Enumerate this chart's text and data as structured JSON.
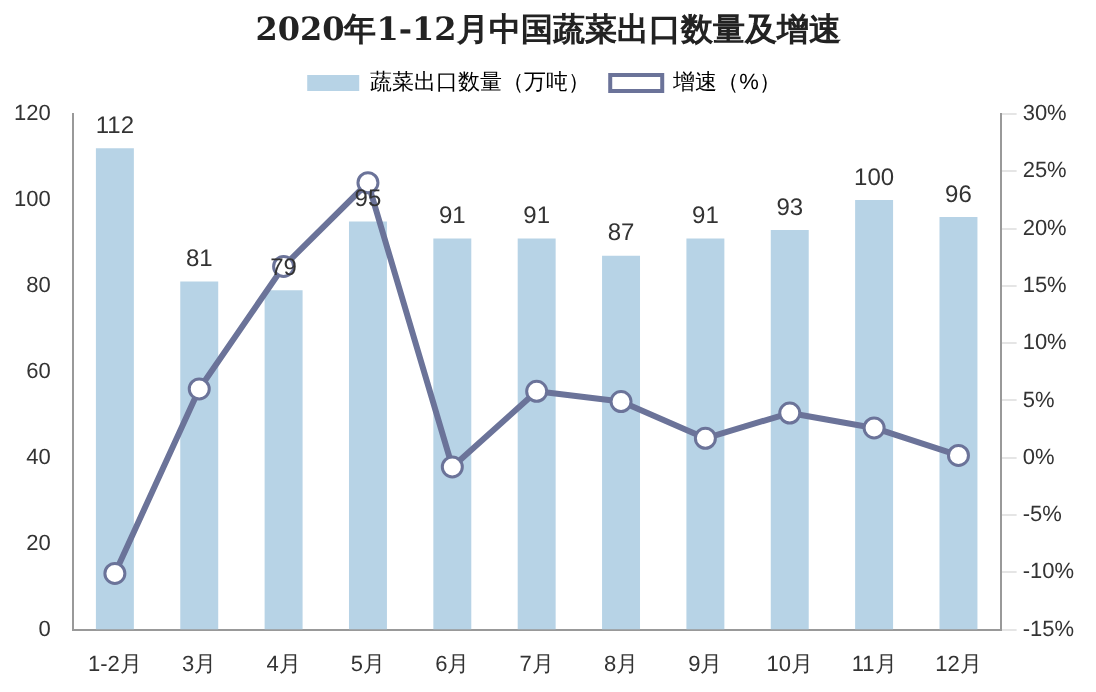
{
  "chart_data": {
    "type": "bar",
    "title": "2020年1-12月中国蔬菜出口数量及增速",
    "categories": [
      "1-2月",
      "3月",
      "4月",
      "5月",
      "6月",
      "7月",
      "8月",
      "9月",
      "10月",
      "11月",
      "12月"
    ],
    "series": [
      {
        "name": "蔬菜出口数量（万吨）",
        "color": "#b7d3e6",
        "values": [
          112,
          81,
          79,
          95,
          91,
          91,
          87,
          91,
          93,
          100,
          96
        ],
        "data_labels": true
      },
      {
        "name": "增速（%）",
        "type": "line",
        "axis": "y2",
        "color": "#6b7399",
        "marker": "circle",
        "values": [
          -10.1,
          6,
          16.7,
          24,
          -0.8,
          5.8,
          4.9,
          1.7,
          3.9,
          2.6,
          0.2
        ]
      }
    ],
    "ylim": [
      0,
      120
    ],
    "yticks": [
      0,
      20,
      40,
      60,
      80,
      100,
      120
    ],
    "y2lim": [
      -15,
      30
    ],
    "y2ticks": [
      {
        "value": -15,
        "label": "-15%"
      },
      {
        "value": -10,
        "label": "-10%"
      },
      {
        "value": -5,
        "label": "-5%"
      },
      {
        "value": 0,
        "label": "0%"
      },
      {
        "value": 5,
        "label": "5%"
      },
      {
        "value": 10,
        "label": "10%"
      },
      {
        "value": 15,
        "label": "15%"
      },
      {
        "value": 20,
        "label": "20%"
      },
      {
        "value": 25,
        "label": "25%"
      },
      {
        "value": 30,
        "label": "30%"
      }
    ],
    "grid": false,
    "legend": "top"
  }
}
